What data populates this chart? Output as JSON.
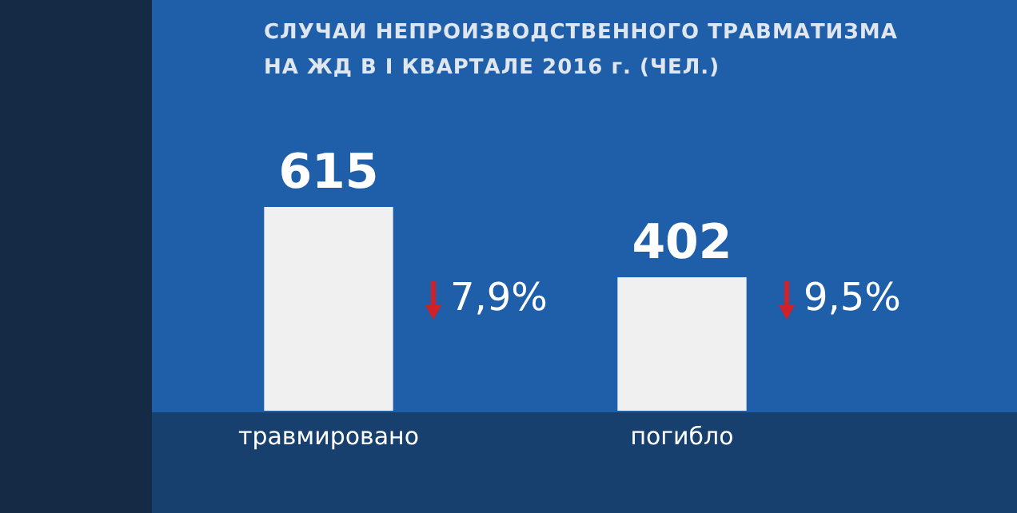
{
  "chart_data": {
    "type": "bar",
    "title": "СЛУЧАИ НЕПРОИЗВОДСТВЕННОГО ТРАВМАТИЗМА\nНА ЖД В I КВАРТАЛЕ 2016 г. (ЧЕЛ.)",
    "categories": [
      "травмировано",
      "погибло"
    ],
    "values": [
      615,
      402
    ],
    "color": "#f0f0f0",
    "data_labels": true,
    "annotations": [
      "7,9%",
      "9,5%"
    ],
    "legend": false
  }
}
